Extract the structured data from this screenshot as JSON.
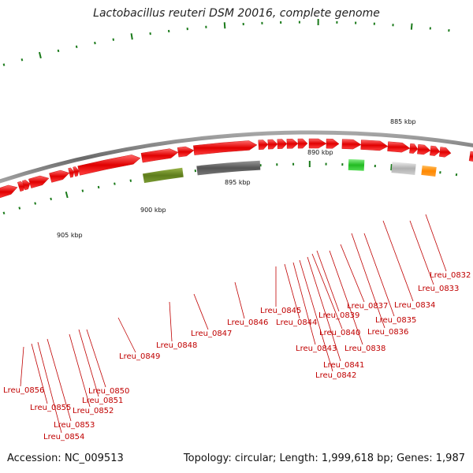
{
  "title": "Lactobacillus reuteri DSM 20016, complete genome",
  "accession_text": "Accession: NC_009513",
  "summary_text": "Topology: circular; Length: 1,999,618 bp; Genes: 1,987",
  "colors": {
    "backbone": "#7a7a7a",
    "cds_forward": "#ee0000",
    "locus_label": "#c00000",
    "tick_marks": "#1a7a1a",
    "gene_olive": "#6b8e23",
    "gene_gray": "#666666",
    "gene_green": "#33cc33",
    "gene_light_gray": "#c0c0c0",
    "gene_orange": "#ff8c00"
  },
  "kbp_scale": [
    {
      "label": "885 kbp"
    },
    {
      "label": "890 kbp"
    },
    {
      "label": "895 kbp"
    },
    {
      "label": "900 kbp"
    },
    {
      "label": "905 kbp"
    }
  ],
  "loci": [
    {
      "label": "Lreu_0832"
    },
    {
      "label": "Lreu_0833"
    },
    {
      "label": "Lreu_0834"
    },
    {
      "label": "Lreu_0835"
    },
    {
      "label": "Lreu_0836"
    },
    {
      "label": "Lreu_0837"
    },
    {
      "label": "Lreu_0838"
    },
    {
      "label": "Lreu_0839"
    },
    {
      "label": "Lreu_0840"
    },
    {
      "label": "Lreu_0841"
    },
    {
      "label": "Lreu_0842"
    },
    {
      "label": "Lreu_0843"
    },
    {
      "label": "Lreu_0844"
    },
    {
      "label": "Lreu_0845"
    },
    {
      "label": "Lreu_0846"
    },
    {
      "label": "Lreu_0847"
    },
    {
      "label": "Lreu_0848"
    },
    {
      "label": "Lreu_0849"
    },
    {
      "label": "Lreu_0850"
    },
    {
      "label": "Lreu_0851"
    },
    {
      "label": "Lreu_0852"
    },
    {
      "label": "Lreu_0853"
    },
    {
      "label": "Lreu_0854"
    },
    {
      "label": "Lreu_0855"
    },
    {
      "label": "Lreu_0856"
    }
  ]
}
